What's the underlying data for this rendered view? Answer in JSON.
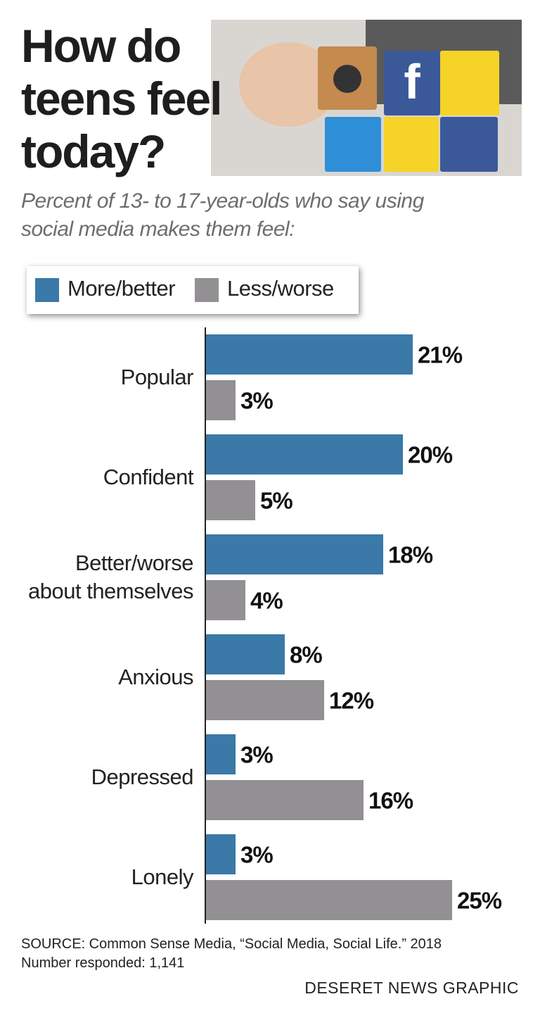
{
  "title": "How do teens feel today?",
  "subtitle": "Percent of 13- to 17-year-olds who say using social media makes them feel:",
  "chart_data": {
    "type": "hbar",
    "categories": [
      "Popular",
      "Confident",
      "Better/worse\nabout themselves",
      "Anxious",
      "Depressed",
      "Lonely"
    ],
    "series": [
      {
        "name": "More/better",
        "color": "#3a79a8",
        "values": [
          21,
          20,
          18,
          8,
          3,
          3
        ],
        "value_labels": [
          "21%",
          "20%",
          "18%",
          "8%",
          "3%",
          "3%"
        ]
      },
      {
        "name": "Less/worse",
        "color": "#929093",
        "values": [
          3,
          5,
          4,
          12,
          16,
          25
        ],
        "value_labels": [
          "3%",
          "5%",
          "4%",
          "12%",
          "16%",
          "25%"
        ]
      }
    ]
  },
  "source": "SOURCE: Common Sense Media, “Social Media, Social Life.” 2018",
  "note": "Number responded: 1,141",
  "credit": "DESERET NEWS GRAPHIC"
}
